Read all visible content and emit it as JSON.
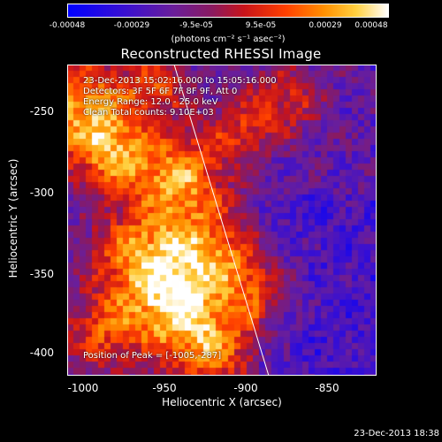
{
  "colorbar": {
    "ticks": [
      "-0.00048",
      "-0.00029",
      "-9.5e-05",
      "9.5e-05",
      "0.00029",
      "0.00048"
    ],
    "unit": "(photons cm⁻² s⁻¹ asec⁻²)"
  },
  "title": "Reconstructed RHESSI Image",
  "info": {
    "time_range": "23-Dec-2013 15:02:16.000 to 15:05:16.000",
    "detectors": "Detectors: 3F 5F 6F 7F 8F 9F, Att 0",
    "energy": "Energy Range: 12.0 - 25.0 keV",
    "clean": "Clean     Total counts: 9.10E+03",
    "peak": "Position of Peak = [-1005,-287]"
  },
  "axes": {
    "xlabel": "Heliocentric X (arcsec)",
    "ylabel": "Heliocentric Y (arcsec)",
    "xticks": [
      "-1000",
      "-950",
      "-900",
      "-850"
    ],
    "yticks": [
      "-250",
      "-300",
      "-350",
      "-400"
    ],
    "xlim": [
      -1007,
      -818
    ],
    "ylim": [
      -418,
      -228
    ]
  },
  "timestamp": "23-Dec-2013 18:38",
  "colors": {
    "low": "#0000ff",
    "mid": "#ff2000",
    "high": "#ffffff"
  }
}
